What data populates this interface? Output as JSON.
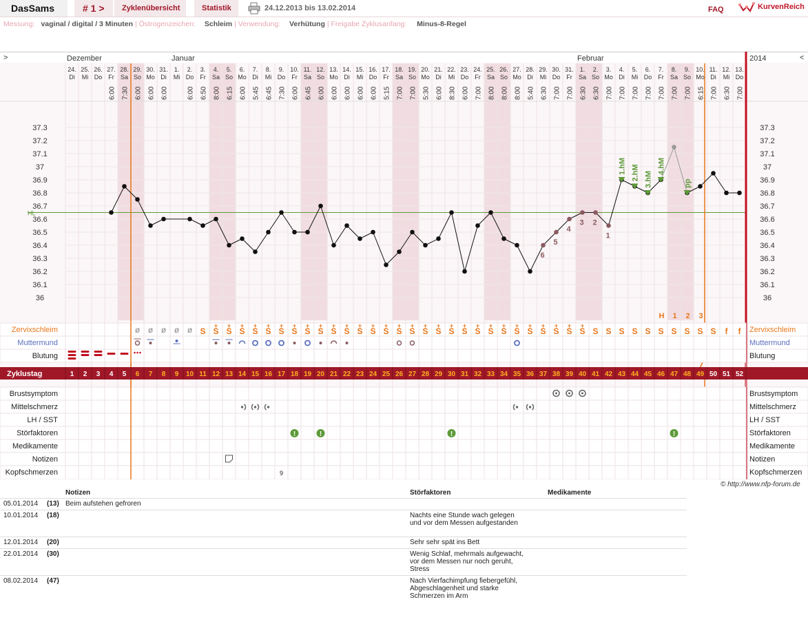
{
  "topbar": {
    "brand": "DasSams",
    "cycle_nav": "# 1 >",
    "tab_overview": "Zyklenübersicht",
    "tab_stats": "Statistik",
    "date_range": "24.12.2013 bis 13.02.2014",
    "faq": "FAQ",
    "logo_text": "KurvenReich"
  },
  "settings": {
    "measure_label": "Messung:",
    "measure_value": "vaginal / digital / 3 Minuten",
    "estrogen_label": "Östrogenzeichen:",
    "estrogen_value": "Schleim",
    "usage_label": "Verwendung:",
    "usage_value": "Verhütung",
    "release_label": "Freigabe Zyklusanfang:",
    "release_value": "Minus-8-Regel"
  },
  "chart": {
    "nav_left": ">",
    "nav_right": "<",
    "year": "2014",
    "months": [
      {
        "label": "Dezember",
        "day": 0
      },
      {
        "label": "Januar",
        "day": 8
      },
      {
        "label": "Februar",
        "day": 39
      }
    ],
    "days": [
      {
        "d": "24.",
        "w": "Di",
        "t": "",
        "wk": false
      },
      {
        "d": "25.",
        "w": "Mi",
        "t": "",
        "wk": false
      },
      {
        "d": "26.",
        "w": "Do",
        "t": "",
        "wk": false
      },
      {
        "d": "27.",
        "w": "Fr",
        "t": "6:00",
        "wk": false
      },
      {
        "d": "28.",
        "w": "Sa",
        "t": "7:30",
        "wk": true
      },
      {
        "d": "29.",
        "w": "So",
        "t": "6:00",
        "wk": true
      },
      {
        "d": "30.",
        "w": "Mo",
        "t": "6:00",
        "wk": false
      },
      {
        "d": "31.",
        "w": "Di",
        "t": "6:00",
        "wk": false
      },
      {
        "d": "1.",
        "w": "Mi",
        "t": "",
        "wk": false
      },
      {
        "d": "2.",
        "w": "Do",
        "t": "6:00",
        "wk": false
      },
      {
        "d": "3.",
        "w": "Fr",
        "t": "6:50",
        "wk": false
      },
      {
        "d": "4.",
        "w": "Sa",
        "t": "8:00",
        "wk": true
      },
      {
        "d": "5.",
        "w": "So",
        "t": "6:15",
        "wk": true
      },
      {
        "d": "6.",
        "w": "Mo",
        "t": "6:00",
        "wk": false
      },
      {
        "d": "7.",
        "w": "Di",
        "t": "5:45",
        "wk": false
      },
      {
        "d": "8.",
        "w": "Mi",
        "t": "6:45",
        "wk": false
      },
      {
        "d": "9.",
        "w": "Do",
        "t": "7:30",
        "wk": false
      },
      {
        "d": "10.",
        "w": "Fr",
        "t": "6:00",
        "wk": false
      },
      {
        "d": "11.",
        "w": "Sa",
        "t": "6:45",
        "wk": true
      },
      {
        "d": "12.",
        "w": "So",
        "t": "6:00",
        "wk": true
      },
      {
        "d": "13.",
        "w": "Mo",
        "t": "6:00",
        "wk": false
      },
      {
        "d": "14.",
        "w": "Di",
        "t": "6:00",
        "wk": false
      },
      {
        "d": "15.",
        "w": "Mi",
        "t": "6:00",
        "wk": false
      },
      {
        "d": "16.",
        "w": "Do",
        "t": "6:00",
        "wk": false
      },
      {
        "d": "17.",
        "w": "Fr",
        "t": "5:15",
        "wk": false
      },
      {
        "d": "18.",
        "w": "Sa",
        "t": "7:00",
        "wk": true
      },
      {
        "d": "19.",
        "w": "So",
        "t": "7:00",
        "wk": true
      },
      {
        "d": "20.",
        "w": "Mo",
        "t": "5:30",
        "wk": false
      },
      {
        "d": "21.",
        "w": "Di",
        "t": "6:00",
        "wk": false
      },
      {
        "d": "22.",
        "w": "Mi",
        "t": "8:30",
        "wk": false
      },
      {
        "d": "23.",
        "w": "Do",
        "t": "6:00",
        "wk": false
      },
      {
        "d": "24.",
        "w": "Fr",
        "t": "7:00",
        "wk": false
      },
      {
        "d": "25.",
        "w": "Sa",
        "t": "8:00",
        "wk": true
      },
      {
        "d": "26.",
        "w": "So",
        "t": "8:00",
        "wk": true
      },
      {
        "d": "27.",
        "w": "Mo",
        "t": "8:00",
        "wk": false
      },
      {
        "d": "28.",
        "w": "Di",
        "t": "5:40",
        "wk": false
      },
      {
        "d": "29.",
        "w": "Mi",
        "t": "6:30",
        "wk": false
      },
      {
        "d": "30.",
        "w": "Do",
        "t": "7:00",
        "wk": false
      },
      {
        "d": "31.",
        "w": "Fr",
        "t": "7:00",
        "wk": false
      },
      {
        "d": "1.",
        "w": "Sa",
        "t": "6:30",
        "wk": true
      },
      {
        "d": "2.",
        "w": "So",
        "t": "6:30",
        "wk": true
      },
      {
        "d": "3.",
        "w": "Mo",
        "t": "7:00",
        "wk": false
      },
      {
        "d": "4.",
        "w": "Di",
        "t": "7:00",
        "wk": false
      },
      {
        "d": "5.",
        "w": "Mi",
        "t": "7:00",
        "wk": false
      },
      {
        "d": "6.",
        "w": "Do",
        "t": "7:00",
        "wk": false
      },
      {
        "d": "7.",
        "w": "Fr",
        "t": "7:00",
        "wk": false
      },
      {
        "d": "8.",
        "w": "Sa",
        "t": "7:00",
        "wk": true
      },
      {
        "d": "9.",
        "w": "So",
        "t": "7:00",
        "wk": true
      },
      {
        "d": "10.",
        "w": "Mo",
        "t": "6:15",
        "wk": false
      },
      {
        "d": "11.",
        "w": "Di",
        "t": "7:00",
        "wk": false
      },
      {
        "d": "12.",
        "w": "Mi",
        "t": "6:30",
        "wk": false
      },
      {
        "d": "13.",
        "w": "Do",
        "t": "7:00",
        "wk": false
      }
    ],
    "temp_ticks": [
      "37.3",
      "37.2",
      "37.1",
      "37",
      "36.9",
      "36.8",
      "36.7",
      "36.6",
      "36.5",
      "36.4",
      "36.3",
      "36.2",
      "36.1",
      "36"
    ],
    "hl_label": "HL",
    "hl_value": 36.65,
    "cycle_start_day": 5,
    "cycle_end_day": 48,
    "cycle_label": "Zyklustag",
    "cycle_days": [
      "1",
      "2",
      "3",
      "4",
      "5",
      "6",
      "7",
      "8",
      "9",
      "10",
      "11",
      "12",
      "13",
      "14",
      "15",
      "16",
      "17",
      "18",
      "19",
      "20",
      "21",
      "22",
      "23",
      "24",
      "25",
      "26",
      "27",
      "28",
      "29",
      "30",
      "31",
      "32",
      "33",
      "34",
      "35",
      "36",
      "37",
      "38",
      "39",
      "40",
      "41",
      "42",
      "43",
      "44",
      "45",
      "46",
      "47",
      "48",
      "49",
      "50",
      "51",
      "52"
    ],
    "row_labels": {
      "cervix": "Zervixschleim",
      "mouth": "Muttermund",
      "bleeding": "Blutung",
      "breast": "Brustsymptom",
      "midpain": "Mittelschmerz",
      "lh": "LH / SST",
      "disturb": "Störfaktoren",
      "meds": "Medikamente",
      "notes": "Notizen",
      "headache": "Kopfschmerzen"
    },
    "cervix_symbols": [
      "",
      "",
      "",
      "",
      "",
      "ø",
      "ø",
      "ø",
      "ø",
      "ø",
      "S",
      "S+",
      "S+",
      "S+",
      "S+",
      "S+",
      "S+",
      "S+",
      "S+",
      "S+",
      "S+",
      "S+",
      "S+",
      "S+",
      "S+",
      "S+",
      "S+",
      "S+",
      "S+",
      "S+",
      "S+",
      "S+",
      "S+",
      "S+",
      "S+",
      "S+",
      "S+",
      "S+",
      "S+",
      "S+",
      "S",
      "S",
      "S",
      "S",
      "S",
      "S",
      "S",
      "S",
      "S",
      "S",
      "f",
      "f"
    ],
    "ovu_labels": [
      {
        "day": 46,
        "text": "H"
      },
      {
        "day": 47,
        "text": "1"
      },
      {
        "day": 48,
        "text": "2"
      },
      {
        "day": 49,
        "text": "3"
      }
    ],
    "headache_marks": [
      {
        "day": 16,
        "text": "9"
      }
    ],
    "copyright": "© http://www.nfp-forum.de"
  },
  "chart_data": {
    "type": "line",
    "title": "",
    "xlabel": "",
    "ylabel": "",
    "ylim": [
      35.9,
      37.4
    ],
    "x": [
      "24.12.",
      "25.12.",
      "26.12.",
      "27.12.",
      "28.12.",
      "29.12.",
      "30.12.",
      "31.12.",
      "01.01.",
      "02.01.",
      "03.01.",
      "04.01.",
      "05.01.",
      "06.01.",
      "07.01.",
      "08.01.",
      "09.01.",
      "10.01.",
      "11.01.",
      "12.01.",
      "13.01.",
      "14.01.",
      "15.01.",
      "16.01.",
      "17.01.",
      "18.01.",
      "19.01.",
      "20.01.",
      "21.01.",
      "22.01.",
      "23.01.",
      "24.01.",
      "25.01.",
      "26.01.",
      "27.01.",
      "28.01.",
      "29.01.",
      "30.01.",
      "31.01.",
      "01.02.",
      "02.02.",
      "03.02.",
      "04.02.",
      "05.02.",
      "06.02.",
      "07.02.",
      "08.02.",
      "09.02.",
      "10.02.",
      "11.02.",
      "12.02.",
      "13.02."
    ],
    "series": [
      {
        "values": [
          null,
          null,
          null,
          36.65,
          36.85,
          36.75,
          36.55,
          36.6,
          null,
          36.6,
          36.55,
          36.6,
          36.4,
          36.45,
          36.35,
          36.5,
          36.65,
          36.5,
          36.5,
          36.7,
          36.4,
          36.55,
          36.45,
          36.5,
          36.25,
          36.35,
          36.5,
          36.4,
          36.45,
          36.65,
          36.2,
          36.55,
          36.65,
          36.45,
          36.4,
          36.2,
          36.4,
          36.5,
          36.6,
          36.65,
          36.65,
          36.55,
          36.9,
          36.85,
          36.8,
          36.9,
          37.15,
          36.8,
          36.85,
          36.95,
          36.8,
          36.8
        ]
      }
    ],
    "count_labels": [
      {
        "day": 36,
        "text": "6"
      },
      {
        "day": 37,
        "text": "5"
      },
      {
        "day": 38,
        "text": "4"
      },
      {
        "day": 39,
        "text": "3"
      },
      {
        "day": 40,
        "text": "2"
      },
      {
        "day": 41,
        "text": "1"
      }
    ],
    "high_labels": [
      {
        "day": 42,
        "text": "1.hM"
      },
      {
        "day": 43,
        "text": "2.hM"
      },
      {
        "day": 44,
        "text": "3.hM"
      },
      {
        "day": 45,
        "text": "4.hM"
      },
      {
        "day": 47,
        "text": "pp"
      }
    ],
    "grid": true,
    "legend": "none"
  },
  "notes": {
    "header_notes": "Notizen",
    "header_disturb": "Störfaktoren",
    "header_meds": "Medikamente",
    "rows": [
      {
        "date": "05.01.2014",
        "cd": "(13)",
        "note": "Beim aufstehen gefroren",
        "disturb": ""
      },
      {
        "date": "10.01.2014",
        "cd": "(18)",
        "note": "",
        "disturb": "Nachts eine Stunde wach gelegen und vor dem Messen aufgestanden"
      },
      {
        "date": "12.01.2014",
        "cd": "(20)",
        "note": "",
        "disturb": "Sehr sehr spät ins Bett"
      },
      {
        "date": "22.01.2014",
        "cd": "(30)",
        "note": "",
        "disturb": "Wenig Schlaf, mehrmals aufgewacht, vor dem Messen nur noch geruht, Stress"
      },
      {
        "date": "08.02.2014",
        "cd": "(47)",
        "note": "",
        "disturb": "Nach Vierfachimpfung fiebergefühl, Abgeschlagenheit und starke Schmerzen im Arm"
      }
    ]
  },
  "colors": {
    "accent": "#a01828",
    "orange": "#e8761a",
    "green": "#5e9a3a",
    "mauve": "#8a5a60",
    "blue": "#5b6fc0",
    "weekend": "#f1dde1"
  }
}
